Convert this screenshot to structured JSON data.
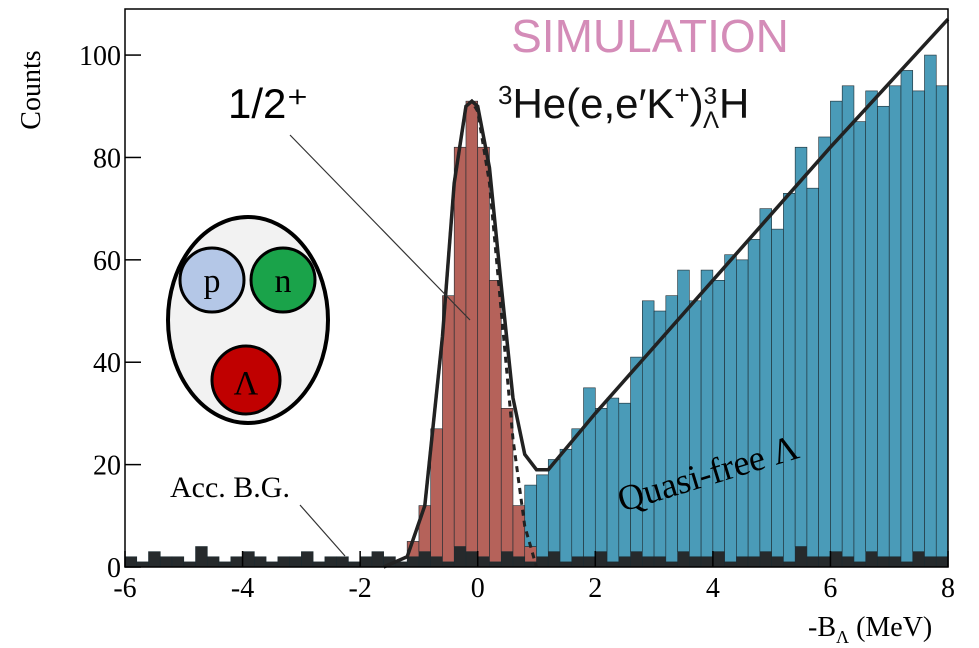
{
  "chart_data": {
    "type": "histogram",
    "title": "SIMULATION",
    "reaction_parts": [
      "3",
      "He(e,e′K",
      "+",
      ")",
      "3",
      "Λ",
      "H"
    ],
    "xlabel_parts": [
      "-B",
      "Λ",
      " (MeV)"
    ],
    "ylabel": "Counts",
    "xlim": [
      -6,
      8
    ],
    "ylim": [
      0,
      109
    ],
    "xticks": [
      -6,
      -4,
      -2,
      0,
      2,
      4,
      6,
      8
    ],
    "yticks": [
      0,
      20,
      40,
      60,
      80,
      100
    ],
    "stacked": true,
    "bins": [
      -6,
      -5.8,
      -5.6,
      -5.4,
      -5.2,
      -5,
      -4.8,
      -4.6,
      -4.4,
      -4.2,
      -4,
      -3.8,
      -3.6,
      -3.4,
      -3.2,
      -3,
      -2.8,
      -2.6,
      -2.4,
      -2.2,
      -2,
      -1.8,
      -1.6,
      -1.4,
      -1.2,
      -1,
      -0.8,
      -0.6,
      -0.4,
      -0.2,
      0,
      0.2,
      0.4,
      0.6,
      0.8,
      1,
      1.2,
      1.4,
      1.6,
      1.8,
      2,
      2.2,
      2.4,
      2.6,
      2.8,
      3,
      3.2,
      3.4,
      3.6,
      3.8,
      4,
      4.2,
      4.4,
      4.6,
      4.8,
      5,
      5.2,
      5.4,
      5.6,
      5.8,
      6,
      6.2,
      6.4,
      6.6,
      6.8,
      7,
      7.2,
      7.4,
      7.6,
      7.8,
      8
    ],
    "series": [
      {
        "name": "Acc. B.G.",
        "color": "#262a2c",
        "values": [
          2,
          1,
          3,
          2,
          2,
          1,
          4,
          2,
          1,
          2,
          3,
          2,
          1,
          2,
          2,
          3,
          1,
          2,
          2,
          1,
          2,
          3,
          2,
          1,
          2,
          3,
          2,
          1,
          4,
          3,
          2,
          1,
          3,
          2,
          1,
          2,
          3,
          1,
          2,
          2,
          3,
          1,
          2,
          3,
          2,
          2,
          1,
          3,
          2,
          2,
          3,
          1,
          2,
          2,
          3,
          2,
          1,
          4,
          2,
          2,
          3,
          2,
          1,
          3,
          2,
          2,
          1,
          3,
          2,
          2
        ]
      },
      {
        "name": "1/2⁺",
        "color": "#b5625a",
        "values": [
          0,
          0,
          0,
          0,
          0,
          0,
          0,
          0,
          0,
          0,
          0,
          0,
          0,
          0,
          0,
          0,
          0,
          0,
          0,
          0,
          0,
          0,
          0,
          0,
          3,
          9,
          25,
          52,
          78,
          88,
          80,
          55,
          28,
          10,
          3,
          0,
          0,
          0,
          0,
          0,
          0,
          0,
          0,
          0,
          0,
          0,
          0,
          0,
          0,
          0,
          0,
          0,
          0,
          0,
          0,
          0,
          0,
          0,
          0,
          0,
          0,
          0,
          0,
          0,
          0,
          0,
          0,
          0,
          0,
          0
        ]
      },
      {
        "name": "Quasi-free Λ",
        "color": "#4a9bb8",
        "values": [
          0,
          0,
          0,
          0,
          0,
          0,
          0,
          0,
          0,
          0,
          0,
          0,
          0,
          0,
          0,
          0,
          0,
          0,
          0,
          0,
          0,
          0,
          0,
          0,
          0,
          0,
          0,
          0,
          0,
          0,
          0,
          0,
          0,
          0,
          12,
          16,
          18,
          22,
          25,
          33,
          28,
          32,
          30,
          38,
          50,
          48,
          52,
          55,
          50,
          56,
          53,
          60,
          58,
          62,
          67,
          64,
          72,
          78,
          72,
          82,
          88,
          92,
          86,
          90,
          88,
          92,
          96,
          90,
          98,
          92
        ]
      }
    ],
    "fit_curves": [
      {
        "style": "solid",
        "x": [
          -1.6,
          -1.2,
          -0.9,
          -0.6,
          -0.4,
          -0.2,
          -0.1,
          0,
          0.2,
          0.4,
          0.6,
          0.8,
          1,
          1.2,
          2,
          4,
          6,
          8
        ],
        "y": [
          0,
          2,
          12,
          45,
          75,
          90,
          91,
          90,
          78,
          55,
          33,
          22,
          19,
          19,
          30,
          56,
          82,
          107
        ]
      },
      {
        "style": "dashed",
        "x": [
          -1.6,
          -1.2,
          -0.9,
          -0.6,
          -0.4,
          -0.2,
          -0.1,
          0,
          0.2,
          0.4,
          0.6,
          0.8,
          1
        ],
        "y": [
          0,
          2,
          12,
          45,
          75,
          90,
          91,
          89,
          75,
          50,
          25,
          8,
          0
        ]
      }
    ],
    "inset_labels": [
      "p",
      "n",
      "Λ"
    ]
  }
}
